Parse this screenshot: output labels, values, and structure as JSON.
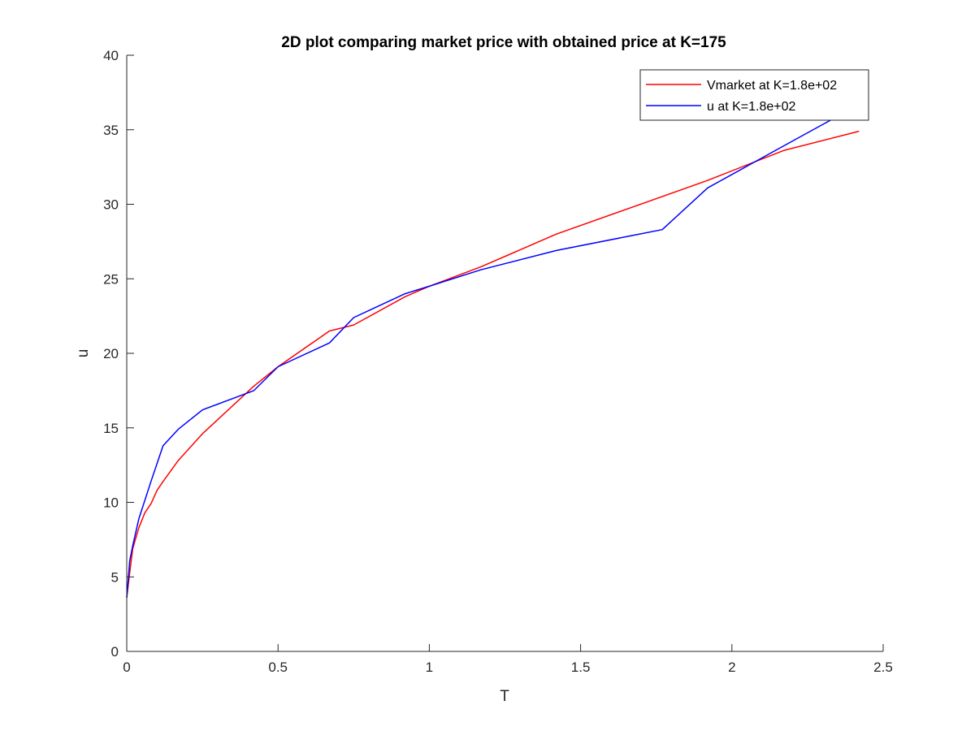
{
  "chart_data": {
    "type": "line",
    "title": "2D plot comparing market price with obtained price at K=175",
    "xlabel": "T",
    "ylabel": "u",
    "xlim": [
      0,
      2.5
    ],
    "ylim": [
      0,
      40
    ],
    "x_ticks": [
      "0",
      "0.5",
      "1",
      "1.5",
      "2",
      "2.5"
    ],
    "y_ticks": [
      "0",
      "5",
      "10",
      "15",
      "20",
      "25",
      "30",
      "35",
      "40"
    ],
    "grid": false,
    "legend_position": "top-right",
    "series": [
      {
        "name": "Vmarket at K=1.8e+02",
        "color": "#ff0000",
        "x": [
          0,
          0.01,
          0.02,
          0.04,
          0.06,
          0.08,
          0.1,
          0.12,
          0.17,
          0.25,
          0.42,
          0.5,
          0.67,
          0.75,
          0.92,
          1.0,
          1.17,
          1.42,
          1.67,
          1.92,
          2.17,
          2.42
        ],
        "y": [
          3.6,
          5.3,
          6.9,
          8.3,
          9.3,
          9.9,
          10.8,
          11.4,
          12.8,
          14.6,
          17.8,
          19.1,
          21.5,
          21.9,
          23.8,
          24.5,
          25.8,
          28.0,
          29.8,
          31.6,
          33.6,
          34.9
        ]
      },
      {
        "name": "u at K=1.8e+02",
        "color": "#0000ff",
        "x": [
          0,
          0.01,
          0.02,
          0.04,
          0.08,
          0.12,
          0.17,
          0.25,
          0.42,
          0.5,
          0.67,
          0.75,
          0.92,
          1.0,
          1.17,
          1.42,
          1.67,
          1.77,
          1.92,
          2.17,
          2.34
        ],
        "y": [
          3.6,
          6.1,
          7.1,
          8.9,
          11.4,
          13.8,
          14.9,
          16.2,
          17.5,
          19.1,
          20.7,
          22.4,
          24.0,
          24.5,
          25.6,
          26.9,
          27.9,
          28.3,
          31.1,
          33.9,
          35.8
        ]
      }
    ]
  }
}
